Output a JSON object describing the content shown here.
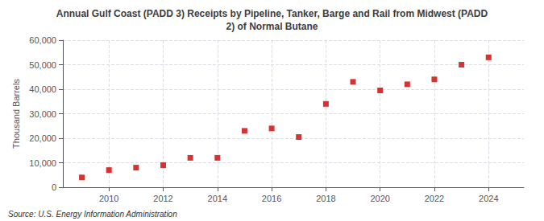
{
  "chart_data": {
    "type": "scatter",
    "title": "Annual Gulf Coast (PADD 3) Receipts by Pipeline, Tanker, Barge and Rail from Midwest (PADD\n2) of Normal Butane",
    "ylabel": "Thousand Barrels",
    "source": "Source: U.S. Energy Information Administration",
    "x": [
      2009,
      2010,
      2011,
      2012,
      2013,
      2014,
      2015,
      2016,
      2017,
      2018,
      2019,
      2020,
      2021,
      2022,
      2023,
      2024
    ],
    "values": [
      4000,
      7000,
      8000,
      9000,
      12000,
      12000,
      23000,
      24000,
      20500,
      34000,
      43000,
      39500,
      42000,
      44000,
      50000,
      53000
    ],
    "color": "#cc0000",
    "marker": "square",
    "xlim": [
      2008.3,
      2025.3
    ],
    "xticks": [
      2010,
      2012,
      2014,
      2016,
      2018,
      2020,
      2022,
      2024
    ],
    "ylim": [
      0,
      60000
    ],
    "yticks": [
      0,
      {
        "value": 10000,
        "label": "10,000"
      },
      {
        "value": 20000,
        "label": "20,000"
      },
      {
        "value": 30000,
        "label": "30,000"
      },
      {
        "value": 40000,
        "label": "40,000"
      },
      {
        "value": 50000,
        "label": "50,000"
      },
      {
        "value": 60000,
        "label": "60,000"
      }
    ],
    "grid": true
  }
}
